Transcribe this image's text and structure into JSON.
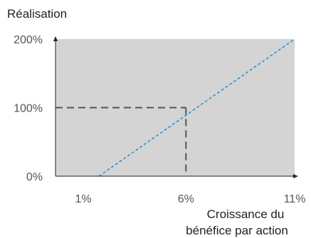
{
  "chart_data": {
    "type": "line",
    "ylabel": "Réalisation",
    "xlabel_lines": [
      "Croissance du",
      "bénéfice par action"
    ],
    "x_ticks": [
      {
        "value": 1,
        "label": "1%"
      },
      {
        "value": 6,
        "label": "6%"
      },
      {
        "value": 11,
        "label": "11%"
      }
    ],
    "y_ticks": [
      {
        "value": 0,
        "label": "0%"
      },
      {
        "value": 100,
        "label": "100%"
      },
      {
        "value": 200,
        "label": "200%"
      }
    ],
    "xlim": [
      0,
      11
    ],
    "ylim": [
      0,
      200
    ],
    "series": [
      {
        "values": [
          {
            "x": 2,
            "y": 0
          },
          {
            "x": 11,
            "y": 200
          }
        ],
        "style": "dotted",
        "color": "#1f8fd6"
      }
    ],
    "reference_point": {
      "x": 6,
      "y": 100
    },
    "plot_background": "#d4d4d4",
    "axis_color": "#222222",
    "reference_color": "#555555"
  }
}
